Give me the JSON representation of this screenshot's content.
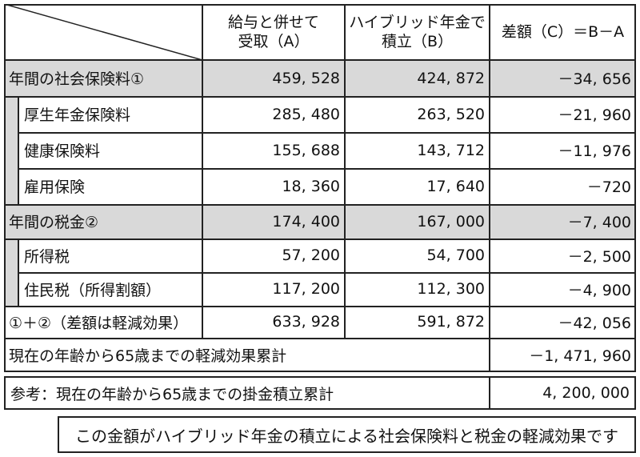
{
  "header": {
    "col_a": "給与と併せて受取（A）",
    "col_a_1": "給与と併せて",
    "col_a_2": "受取（A）",
    "col_b_1": "ハイブリッド年金で",
    "col_b_2": "積立（B）",
    "col_c": "差額（C）＝B－A"
  },
  "rows": [
    {
      "label": "年間の社会保険料①",
      "a": "459, 528",
      "b": "424, 872",
      "c": "－34, 656"
    },
    {
      "label": "厚生年金保険料",
      "a": "285, 480",
      "b": "263, 520",
      "c": "－21, 960"
    },
    {
      "label": "健康保険料",
      "a": "155, 688",
      "b": "143, 712",
      "c": "－11, 976"
    },
    {
      "label": "雇用保険",
      "a": "18, 360",
      "b": "17, 640",
      "c": "－720"
    },
    {
      "label": "年間の税金②",
      "a": "174, 400",
      "b": "167, 000",
      "c": "－7, 400"
    },
    {
      "label": "所得税",
      "a": "57, 200",
      "b": "54, 700",
      "c": "－2, 500"
    },
    {
      "label": "住民税（所得割額）",
      "a": "117, 200",
      "b": "112, 300",
      "c": "－4, 900"
    },
    {
      "label": "①＋②（差額は軽減効果）",
      "a": "633, 928",
      "b": "591, 872",
      "c": "－42, 056"
    }
  ],
  "cumulative": {
    "label": "現在の年齢から65歳までの軽減効果累計",
    "value": "－1, 471, 960"
  },
  "reference": {
    "label": "参考：現在の年齢から65歳までの掛金積立累計",
    "value": "4, 200, 000"
  },
  "note": "この金額がハイブリッド年金の積立による社会保険料と税金の軽減効果です"
}
